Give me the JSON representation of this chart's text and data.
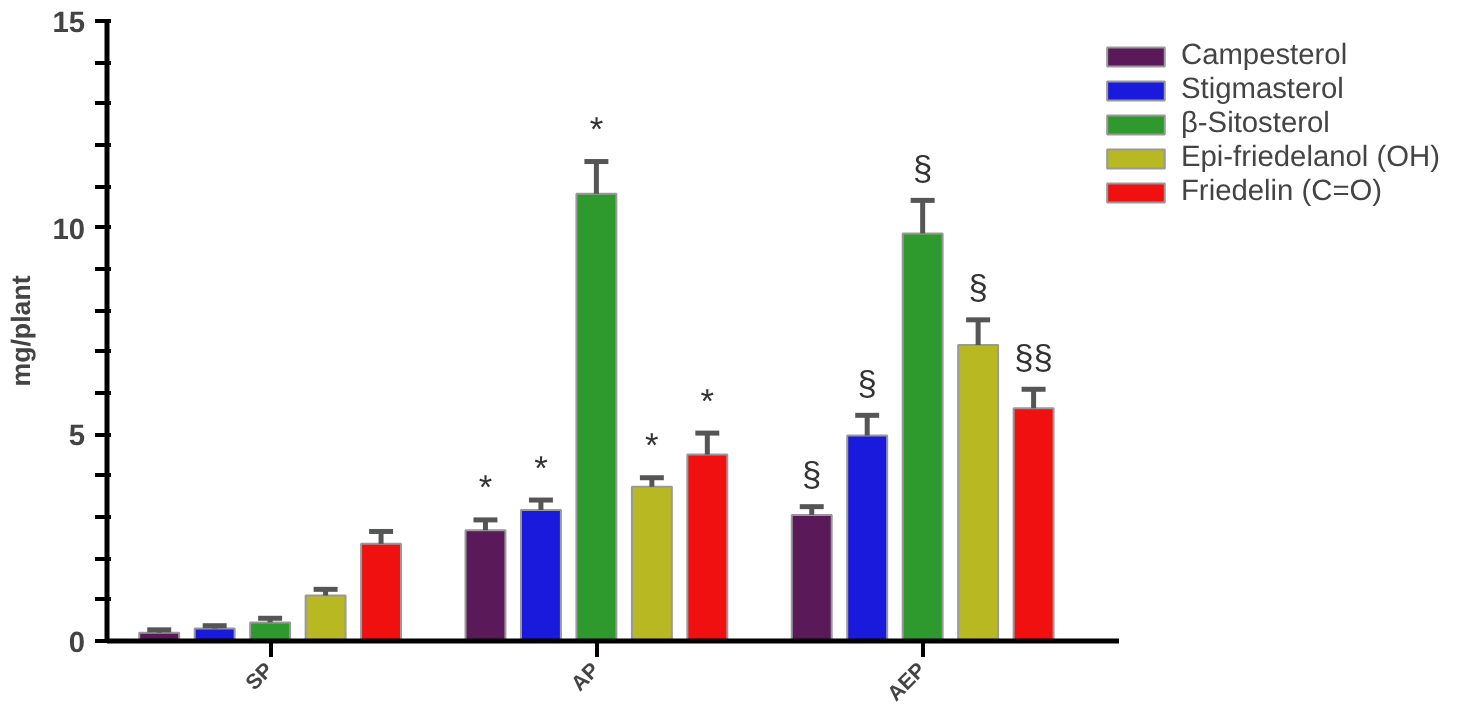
{
  "chart_data": {
    "type": "bar",
    "ylabel": "mg/plant",
    "categories": [
      "SP",
      "AP",
      "AEP"
    ],
    "series": [
      {
        "name": "Campesterol",
        "color": "#5a1a5a",
        "values": [
          0.2,
          2.68,
          3.05
        ],
        "errors": [
          0.07,
          0.25,
          0.2
        ],
        "value_labels": [
          null,
          "*",
          "§"
        ]
      },
      {
        "name": "Stigmasterol",
        "color": "#1a1adc",
        "values": [
          0.3,
          3.17,
          4.97
        ],
        "errors": [
          0.07,
          0.24,
          0.49
        ],
        "value_labels": [
          null,
          "*",
          "§"
        ]
      },
      {
        "name": "β-Sitosterol",
        "color": "#2e9a2e",
        "values": [
          0.45,
          10.82,
          9.86
        ],
        "errors": [
          0.1,
          0.78,
          0.8
        ],
        "value_labels": [
          null,
          "*",
          "§"
        ]
      },
      {
        "name": "Epi-friedelanol (OH)",
        "color": "#b8b822",
        "values": [
          1.1,
          3.73,
          7.16
        ],
        "errors": [
          0.15,
          0.22,
          0.61
        ],
        "value_labels": [
          null,
          "*",
          "§"
        ]
      },
      {
        "name": "Friedelin (C=O)",
        "color": "#f01010",
        "values": [
          2.35,
          4.51,
          5.63
        ],
        "errors": [
          0.3,
          0.52,
          0.46
        ],
        "value_labels": [
          null,
          "*",
          "§§"
        ]
      }
    ],
    "ylim": [
      0,
      15
    ],
    "yticks": [
      0,
      {
        "value": 1,
        "label": null
      },
      {
        "value": 2,
        "label": null
      },
      {
        "value": 3,
        "label": null
      },
      {
        "value": 4,
        "label": null
      },
      5,
      {
        "value": 6,
        "label": null
      },
      {
        "value": 7,
        "label": null
      },
      {
        "value": 8,
        "label": null
      },
      {
        "value": 9,
        "label": null
      },
      10,
      {
        "value": 11,
        "label": null
      },
      {
        "value": 12,
        "label": null
      },
      {
        "value": 13,
        "label": null
      },
      {
        "value": 14,
        "label": null
      },
      15
    ],
    "grid": false,
    "legend": "top right"
  }
}
